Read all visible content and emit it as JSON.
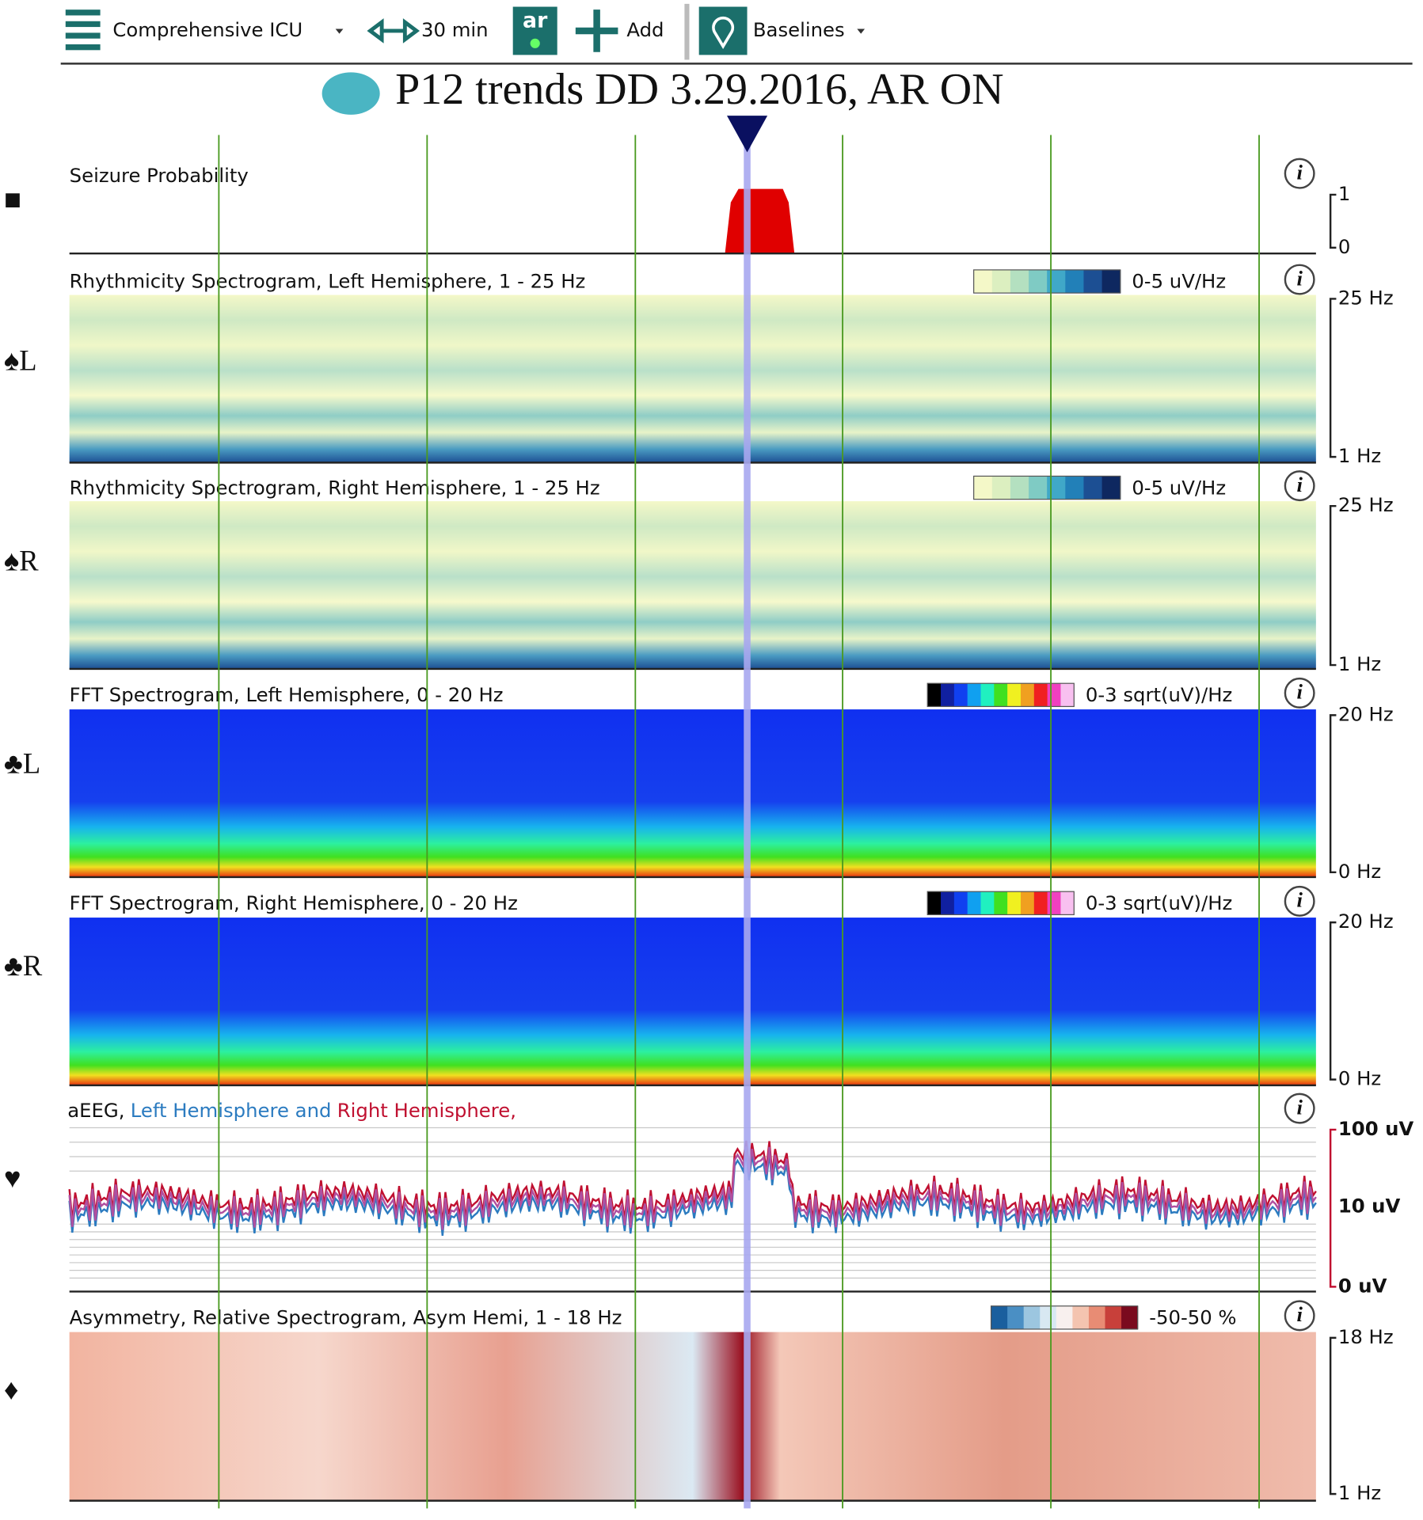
{
  "toolbar": {
    "montage": "Comprehensive ICU",
    "duration": "30 min",
    "ar": "ar",
    "add": "Add",
    "baselines": "Baselines"
  },
  "title": "P12 trends DD 3.29.2016, AR ON",
  "panels": [
    {
      "symbol": "■",
      "label": "Seizure Probability",
      "scale": [
        "1",
        "0"
      ]
    },
    {
      "symbol": "♠L",
      "label": "Rhythmicity Spectrogram, Left Hemisphere, 1 - 25 Hz",
      "colorbar": "0-5 uV/Hz",
      "scale": [
        "25 Hz",
        "1 Hz"
      ]
    },
    {
      "symbol": "♠R",
      "label": "Rhythmicity Spectrogram, Right Hemisphere, 1 - 25 Hz",
      "colorbar": "0-5 uV/Hz",
      "scale": [
        "25 Hz",
        "1 Hz"
      ]
    },
    {
      "symbol": "♣L",
      "label": "FFT Spectrogram, Left Hemisphere, 0 - 20 Hz",
      "colorbar": "0-3 sqrt(uV)/Hz",
      "scale": [
        "20 Hz",
        "0 Hz"
      ]
    },
    {
      "symbol": "♣R",
      "label": "FFT Spectrogram, Right Hemisphere, 0 - 20 Hz",
      "colorbar": "0-3 sqrt(uV)/Hz",
      "scale": [
        "20 Hz",
        "0 Hz"
      ]
    },
    {
      "symbol": "♥",
      "label": [
        "aEEG,",
        "Left Hemisphere and",
        "Right Hemisphere,"
      ],
      "scale": [
        "100 uV",
        "10 uV",
        "0 uV"
      ]
    },
    {
      "symbol": "♦",
      "label": "Asymmetry, Relative Spectrogram, Asym Hemi, 1 - 18 Hz",
      "colorbar": "-50-50 %",
      "scale": [
        "18 Hz",
        "1 Hz"
      ]
    }
  ]
}
